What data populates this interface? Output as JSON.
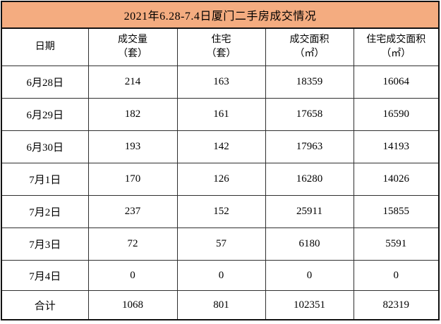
{
  "title": "2021年6.28-7.4日厦门二手房成交情况",
  "table": {
    "headers": [
      [
        "日期"
      ],
      [
        "成交量",
        "（套）"
      ],
      [
        "住宅",
        "（套）"
      ],
      [
        "成交面积",
        "（㎡）"
      ],
      [
        "住宅成交面积",
        "（㎡）"
      ]
    ],
    "rows": [
      [
        "6月28日",
        "214",
        "163",
        "18359",
        "16064"
      ],
      [
        "6月29日",
        "182",
        "161",
        "17658",
        "16590"
      ],
      [
        "6月30日",
        "193",
        "142",
        "17963",
        "14193"
      ],
      [
        "7月1日",
        "170",
        "126",
        "16280",
        "14026"
      ],
      [
        "7月2日",
        "237",
        "152",
        "25911",
        "15855"
      ],
      [
        "7月3日",
        "72",
        "57",
        "6180",
        "5591"
      ],
      [
        "7月4日",
        "0",
        "0",
        "0",
        "0"
      ],
      [
        "合计",
        "1068",
        "801",
        "102351",
        "82319"
      ]
    ]
  },
  "colors": {
    "title_background": "#F4AC80",
    "inner_border": "#2F2F2F",
    "outer_border": "#111111",
    "text": "#000000",
    "page_background": "#FFFFFF"
  },
  "chart_data": {
    "type": "table",
    "title": "2021年6.28-7.4日厦门二手房成交情况",
    "columns": [
      "日期",
      "成交量（套）",
      "住宅（套）",
      "成交面积（㎡）",
      "住宅成交面积（㎡）"
    ],
    "categories": [
      "6月28日",
      "6月29日",
      "6月30日",
      "7月1日",
      "7月2日",
      "7月3日",
      "7月4日",
      "合计"
    ],
    "series": [
      {
        "name": "成交量（套）",
        "values": [
          214,
          182,
          193,
          170,
          237,
          72,
          0,
          1068
        ]
      },
      {
        "name": "住宅（套）",
        "values": [
          163,
          161,
          142,
          126,
          152,
          57,
          0,
          801
        ]
      },
      {
        "name": "成交面积（㎡）",
        "values": [
          18359,
          17658,
          17963,
          16280,
          25911,
          6180,
          0,
          102351
        ]
      },
      {
        "name": "住宅成交面积（㎡）",
        "values": [
          16064,
          16590,
          14193,
          14026,
          15855,
          5591,
          0,
          82319
        ]
      }
    ],
    "layout": {
      "grid": true,
      "title_position": "top",
      "totals_row": "合计"
    }
  }
}
